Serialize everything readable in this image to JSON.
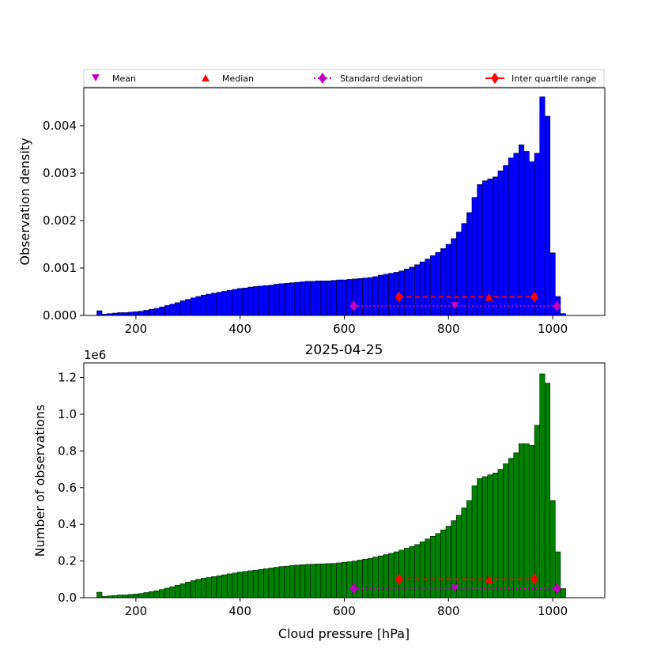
{
  "legend": {
    "mean": "Mean",
    "median": "Median",
    "std": "Standard deviation",
    "iqr": "Inter quartile range"
  },
  "colors": {
    "density_bars": "#0000ff",
    "count_bars": "#008000",
    "bar_edge": "#000000",
    "mean_marker": "#bf00bf",
    "median_marker": "#ff0000",
    "std_line": "#bf00bf",
    "iqr_line": "#ff0000"
  },
  "chart_data": [
    {
      "type": "bar",
      "title": "",
      "xlabel": "",
      "ylabel": "Observation density",
      "xlim": [
        100,
        1100
      ],
      "ylim": [
        0,
        0.0048
      ],
      "xticks": [
        "200",
        "400",
        "600",
        "800",
        "1000"
      ],
      "yticks": [
        "0.000",
        "0.001",
        "0.002",
        "0.003",
        "0.004"
      ],
      "bin_start": 125,
      "bin_width": 10,
      "values": [
        0.0001,
        3e-05,
        4e-05,
        5e-05,
        6e-05,
        6e-05,
        7e-05,
        8e-05,
        9e-05,
        0.00011,
        0.00013,
        0.00015,
        0.00018,
        0.00021,
        0.00024,
        0.00027,
        0.00031,
        0.00034,
        0.00037,
        0.0004,
        0.00043,
        0.00045,
        0.00047,
        0.00049,
        0.00051,
        0.00053,
        0.00055,
        0.00057,
        0.00058,
        0.0006,
        0.00061,
        0.00062,
        0.00063,
        0.00064,
        0.00066,
        0.00067,
        0.00068,
        0.00069,
        0.0007,
        0.00071,
        0.00072,
        0.00072,
        0.00073,
        0.00073,
        0.00073,
        0.00074,
        0.00075,
        0.00075,
        0.00076,
        0.00077,
        0.00078,
        0.00079,
        0.0008,
        0.00082,
        0.00085,
        0.00087,
        0.00089,
        0.00091,
        0.00094,
        0.00098,
        0.00102,
        0.00107,
        0.00113,
        0.00119,
        0.00126,
        0.00133,
        0.00141,
        0.0015,
        0.00162,
        0.00176,
        0.00194,
        0.00217,
        0.00249,
        0.00276,
        0.00284,
        0.00288,
        0.00292,
        0.00305,
        0.00316,
        0.00332,
        0.00342,
        0.0036,
        0.00346,
        0.00324,
        0.00342,
        0.00461,
        0.0042,
        0.00132,
        0.0004,
        4e-05
      ],
      "stats": {
        "mean": 812,
        "median": 878,
        "std_range": [
          618,
          1008
        ],
        "iqr_range": [
          705,
          965
        ],
        "iqr_y": 0.00039,
        "std_y": 0.0002
      }
    },
    {
      "type": "bar",
      "title": "2025-04-25",
      "xlabel": "Cloud pressure [hPa]",
      "ylabel": "Number of observations",
      "scale_label": "1e6",
      "xlim": [
        100,
        1100
      ],
      "ylim": [
        0,
        1.28
      ],
      "xticks": [
        "200",
        "400",
        "600",
        "800",
        "1000"
      ],
      "yticks": [
        "0.0",
        "0.2",
        "0.4",
        "0.6",
        "0.8",
        "1.0",
        "1.2"
      ],
      "bin_start": 125,
      "bin_width": 10,
      "values": [
        0.03,
        0.007,
        0.01,
        0.012,
        0.015,
        0.015,
        0.018,
        0.02,
        0.023,
        0.028,
        0.033,
        0.038,
        0.045,
        0.052,
        0.06,
        0.068,
        0.076,
        0.085,
        0.093,
        0.1,
        0.106,
        0.11,
        0.115,
        0.12,
        0.125,
        0.13,
        0.135,
        0.14,
        0.143,
        0.147,
        0.15,
        0.154,
        0.158,
        0.162,
        0.166,
        0.17,
        0.172,
        0.175,
        0.178,
        0.18,
        0.182,
        0.183,
        0.184,
        0.185,
        0.186,
        0.187,
        0.19,
        0.193,
        0.196,
        0.2,
        0.205,
        0.21,
        0.215,
        0.222,
        0.228,
        0.235,
        0.242,
        0.25,
        0.26,
        0.27,
        0.28,
        0.29,
        0.305,
        0.32,
        0.335,
        0.35,
        0.37,
        0.39,
        0.42,
        0.45,
        0.49,
        0.53,
        0.61,
        0.65,
        0.66,
        0.67,
        0.68,
        0.7,
        0.73,
        0.76,
        0.79,
        0.84,
        0.84,
        0.83,
        0.94,
        1.22,
        1.17,
        0.53,
        0.25,
        0.05
      ],
      "stats": {
        "mean": 812,
        "median": 878,
        "std_range": [
          618,
          1008
        ],
        "iqr_range": [
          705,
          965
        ],
        "iqr_y": 0.1,
        "std_y": 0.05
      }
    }
  ]
}
